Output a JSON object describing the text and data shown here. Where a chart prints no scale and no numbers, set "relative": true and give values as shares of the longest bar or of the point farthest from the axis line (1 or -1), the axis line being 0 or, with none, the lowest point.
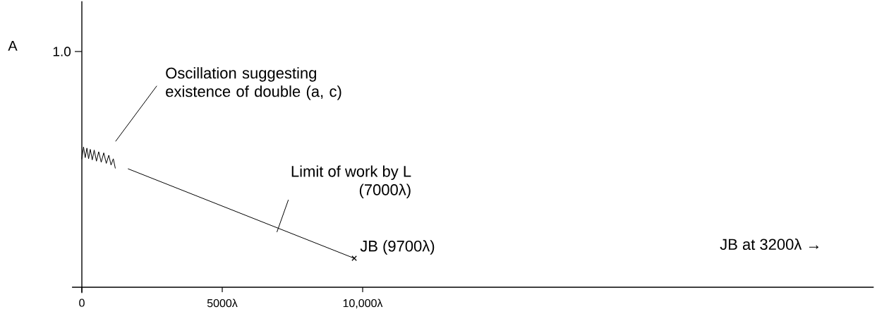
{
  "chart_data": {
    "type": "line",
    "relative": true,
    "xlim": [
      -350,
      28200
    ],
    "xticks": [
      0,
      {
        "value": 5000,
        "label": "5000λ"
      },
      {
        "value": 10000,
        "label": "10,000λ"
      }
    ],
    "series": [
      {
        "color": "#000000",
        "line_style": "solid",
        "x": [
          0,
          60,
          120,
          180,
          240,
          300,
          370,
          440,
          520,
          600,
          690,
          780,
          870,
          960,
          1040,
          1120,
          1190,
          1400,
          1650,
          9700
        ],
        "values": [
          0.916,
          1,
          0.924,
          0.992,
          0.916,
          0.983,
          0.908,
          0.978,
          0.899,
          0.966,
          0.891,
          0.958,
          0.883,
          0.941,
          0.871,
          0.916,
          0.849,
          null,
          0.844,
          0.206
        ]
      },
      {
        "type": "scatter",
        "color": "#000000",
        "marker": "cross",
        "x": [
          9700
        ],
        "values": [
          0.206
        ]
      }
    ],
    "annotations": [
      "A",
      "1.0",
      "Oscillation suggesting existence of double (a, c)",
      {
        "text": "Limit of work by L (7000λ)",
        "x": 7000,
        "y": 0.42
      },
      {
        "text": "JB (9700λ)",
        "x": 9700,
        "y": 0.206
      },
      "JB at 3200λ →"
    ]
  }
}
